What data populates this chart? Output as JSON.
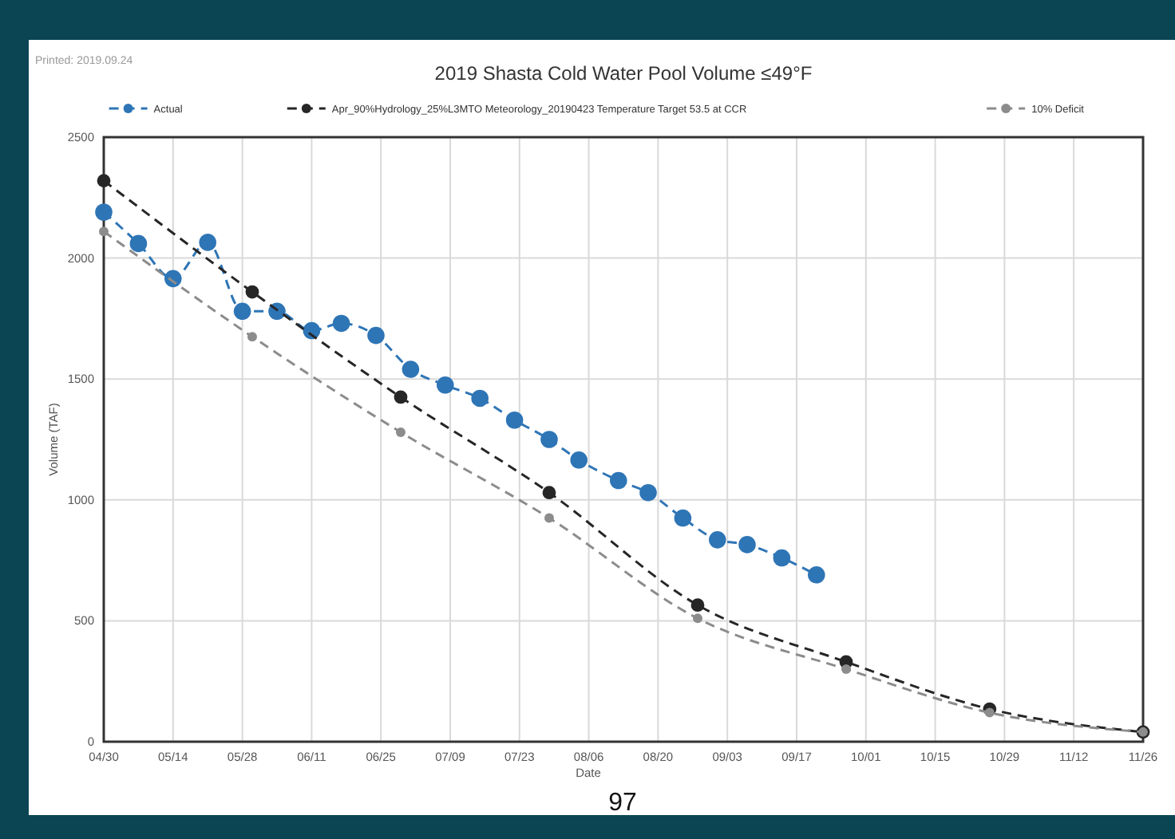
{
  "chart_data": {
    "type": "line",
    "title": "2019 Shasta Cold Water Pool Volume ≤49°F",
    "xlabel": "Date",
    "ylabel": "Volume (TAF)",
    "annotations": [
      "Printed: 2019.09.24",
      "97"
    ],
    "series": [
      {
        "name": "Actual",
        "color": "#2e75b6",
        "x": [
          "--04-30",
          "--05-07",
          "--05-14",
          "--05-21",
          "--05-28",
          "--06-04",
          "--06-11",
          "--06-17",
          "--06-24",
          "--07-01",
          "--07-08",
          "--07-15",
          "--07-22",
          "--07-29",
          "--08-04",
          "--08-12",
          "--08-18",
          "--08-25",
          "--09-01",
          "--09-07",
          "--09-14",
          "--09-21"
        ],
        "values": [
          2190,
          2060,
          1915,
          2065,
          1780,
          1780,
          1700,
          1730,
          1680,
          1540,
          1475,
          1420,
          1330,
          1250,
          1165,
          1080,
          1030,
          925,
          835,
          815,
          760,
          690
        ]
      },
      {
        "name": "Apr_90%Hydrology_25%L3MTO Meteorology_20190423 Temperature Target 53.5 at CCR",
        "color": "#262626",
        "x": [
          "--04-30",
          "--05-30",
          "--06-29",
          "--07-29",
          "--08-28",
          "--09-27",
          "--10-26",
          "--11-26"
        ],
        "values": [
          2320,
          1860,
          1425,
          1030,
          565,
          330,
          135,
          40
        ]
      },
      {
        "name": "10% Deficit",
        "color": "#8c8c8c",
        "x": [
          "--04-30",
          "--05-30",
          "--06-29",
          "--07-29",
          "--08-28",
          "--09-27",
          "--10-26",
          "--11-26"
        ],
        "values": [
          2110,
          1675,
          1280,
          925,
          510,
          300,
          120,
          40
        ]
      }
    ],
    "xlim": [
      "--04-30",
      "--11-26"
    ],
    "xticks": [
      {
        "value": "--04-30",
        "label": "04/30"
      },
      {
        "value": "--05-14",
        "label": "05/14"
      },
      {
        "value": "--05-28",
        "label": "05/28"
      },
      {
        "value": "--06-11",
        "label": "06/11"
      },
      {
        "value": "--06-25",
        "label": "06/25"
      },
      {
        "value": "--07-09",
        "label": "07/09"
      },
      {
        "value": "--07-23",
        "label": "07/23"
      },
      {
        "value": "--08-06",
        "label": "08/06"
      },
      {
        "value": "--08-20",
        "label": "08/20"
      },
      {
        "value": "--09-03",
        "label": "09/03"
      },
      {
        "value": "--09-17",
        "label": "09/17"
      },
      {
        "value": "--10-01",
        "label": "10/01"
      },
      {
        "value": "--10-15",
        "label": "10/15"
      },
      {
        "value": "--10-29",
        "label": "10/29"
      },
      {
        "value": "--11-12",
        "label": "11/12"
      },
      {
        "value": "--11-26",
        "label": "11/26"
      }
    ],
    "ylim": [
      0,
      2500
    ],
    "yticks": [
      0,
      500,
      1000,
      1500,
      2000,
      2500
    ],
    "grid": true,
    "legend": "top",
    "marker": "circle",
    "line_style": "dashed"
  }
}
